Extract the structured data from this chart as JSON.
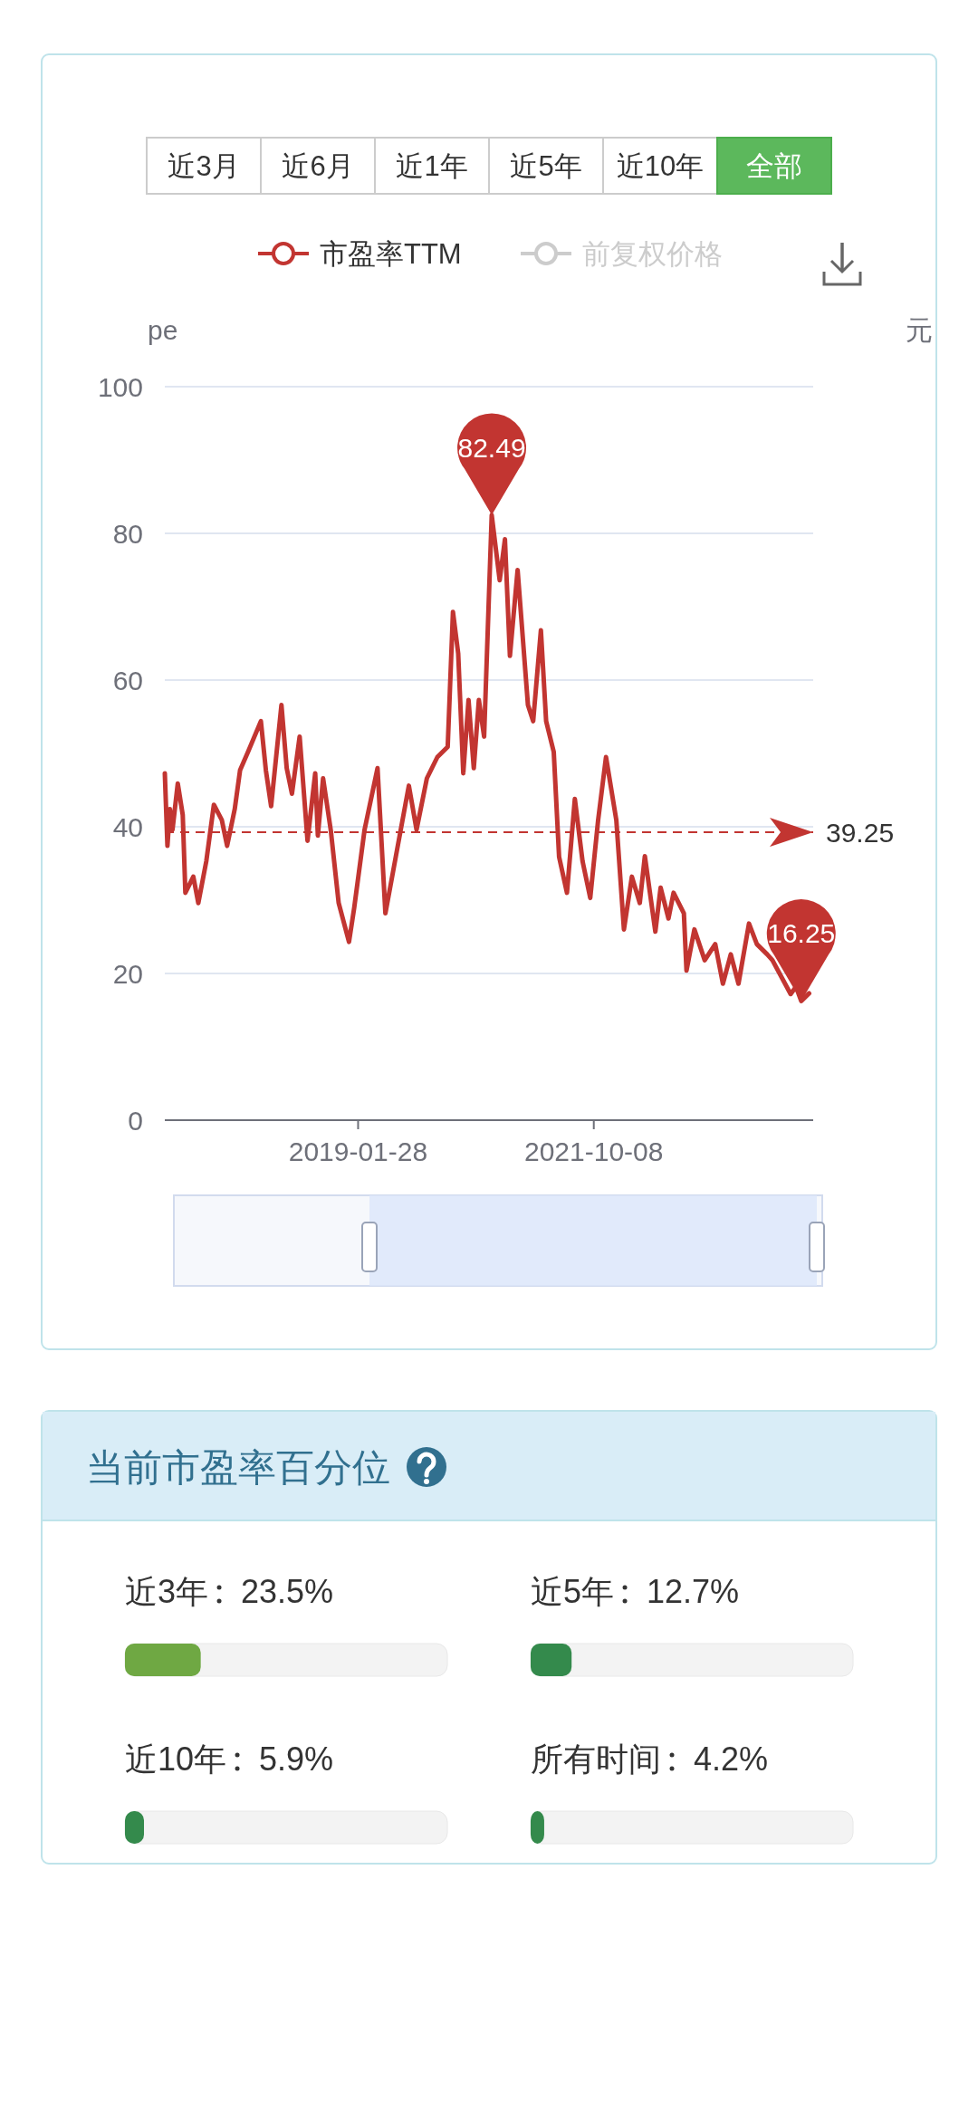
{
  "chart_data": [
    {
      "type": "line",
      "ylabel": "pe",
      "y2label": "元",
      "legend": "top",
      "grid": "y",
      "xlim": [
        "2016-11-12",
        "2024-04-11"
      ],
      "xticks": [
        "2019-01-28",
        "2021-10-08"
      ],
      "ylim": [
        0,
        100
      ],
      "yticks": [
        0,
        20,
        40,
        60,
        80,
        100
      ],
      "series": [
        {
          "name": "市盈率TTM",
          "color": "#c23531",
          "x": [
            "2016-11-12",
            "2016-11-23",
            "2016-12-03",
            "2016-12-14",
            "2017-01-05",
            "2017-01-26",
            "2017-02-06",
            "2017-03-11",
            "2017-04-01",
            "2017-05-04",
            "2017-06-05",
            "2017-07-08",
            "2017-07-30",
            "2017-08-31",
            "2017-09-22",
            "2017-10-25",
            "2017-12-18",
            "2018-01-08",
            "2018-01-30",
            "2018-03-14",
            "2018-04-05",
            "2018-04-27",
            "2018-05-29",
            "2018-07-01",
            "2018-08-02",
            "2018-08-13",
            "2018-09-04",
            "2018-10-06",
            "2018-11-08",
            "2018-12-21",
            "2019-01-12",
            "2019-02-24",
            "2019-04-19",
            "2019-05-22",
            "2019-07-05",
            "2019-08-28",
            "2019-09-29",
            "2019-11-11",
            "2019-12-25",
            "2020-02-06",
            "2020-02-28",
            "2020-03-21",
            "2020-04-11",
            "2020-05-03",
            "2020-05-25",
            "2020-06-15",
            "2020-07-07",
            "2020-08-08",
            "2020-09-10",
            "2020-10-02",
            "2020-10-23",
            "2020-11-24",
            "2021-01-06",
            "2021-01-28",
            "2021-03-01",
            "2021-03-23",
            "2021-04-24",
            "2021-05-16",
            "2021-06-18",
            "2021-07-21",
            "2021-08-22",
            "2021-09-23",
            "2021-10-26",
            "2021-11-28",
            "2022-01-10",
            "2022-02-11",
            "2022-03-16",
            "2022-04-18",
            "2022-05-09",
            "2022-06-22",
            "2022-07-14",
            "2022-08-16",
            "2022-09-06",
            "2022-10-19",
            "2022-10-30",
            "2022-12-02",
            "2023-01-14",
            "2023-02-27",
            "2023-03-31",
            "2023-05-03",
            "2023-06-04",
            "2023-07-18",
            "2023-08-20",
            "2023-10-02",
            "2023-10-24",
            "2024-01-08",
            "2024-01-30",
            "2024-02-21",
            "2024-03-25"
          ],
          "values": [
            47.3,
            37.4,
            42.4,
            39.6,
            45.9,
            41.6,
            31.0,
            33.2,
            29.6,
            35.3,
            43.0,
            40.9,
            37.4,
            42.4,
            47.7,
            50.2,
            54.4,
            47.7,
            42.8,
            56.6,
            48.0,
            44.5,
            52.3,
            38.1,
            47.3,
            38.8,
            46.6,
            39.5,
            29.6,
            24.3,
            29.0,
            39.6,
            48.0,
            28.2,
            36.0,
            45.6,
            39.6,
            46.6,
            49.5,
            50.9,
            69.3,
            63.6,
            47.3,
            57.3,
            48.0,
            57.3,
            52.3,
            82.49,
            73.6,
            79.2,
            63.3,
            75.0,
            56.6,
            54.4,
            66.8,
            54.4,
            50.2,
            35.9,
            31.0,
            43.8,
            35.3,
            30.3,
            40.9,
            49.5,
            40.9,
            26.0,
            33.2,
            29.6,
            36.0,
            25.7,
            31.7,
            27.5,
            31.0,
            28.2,
            20.4,
            26.0,
            21.8,
            24.0,
            18.6,
            22.6,
            18.6,
            26.8,
            24.0,
            22.6,
            21.8,
            17.2,
            18.2,
            16.25,
            17.3
          ]
        },
        {
          "name": "前复权价格",
          "color": "#cccccc"
        }
      ],
      "ref_lines": [
        {
          "axis": "y",
          "value": 39.25,
          "label": "39.25",
          "color": "#c23531",
          "line_style": "dashed"
        }
      ],
      "annotations": [
        "近3月",
        "近6月",
        "近1年",
        "近5年",
        "近10年",
        "全部",
        {
          "text": "82.49",
          "x": "2020-08-08",
          "y": 82.49
        },
        {
          "text": "16.25",
          "x": "2024-02-21",
          "y": 16.25
        }
      ]
    },
    {
      "type": "other",
      "title": "当前市盈率百分位",
      "categories": [
        "近3年",
        "近5年",
        "近10年",
        "所有时间"
      ],
      "values": [
        23.5,
        12.7,
        5.9,
        4.2
      ],
      "value_labels": [
        "23.5%",
        "12.7%",
        "5.9%",
        "4.2%"
      ],
      "colors": [
        "#6fa843",
        "#348a4c",
        "#348a4c",
        "#348a4c"
      ]
    }
  ]
}
